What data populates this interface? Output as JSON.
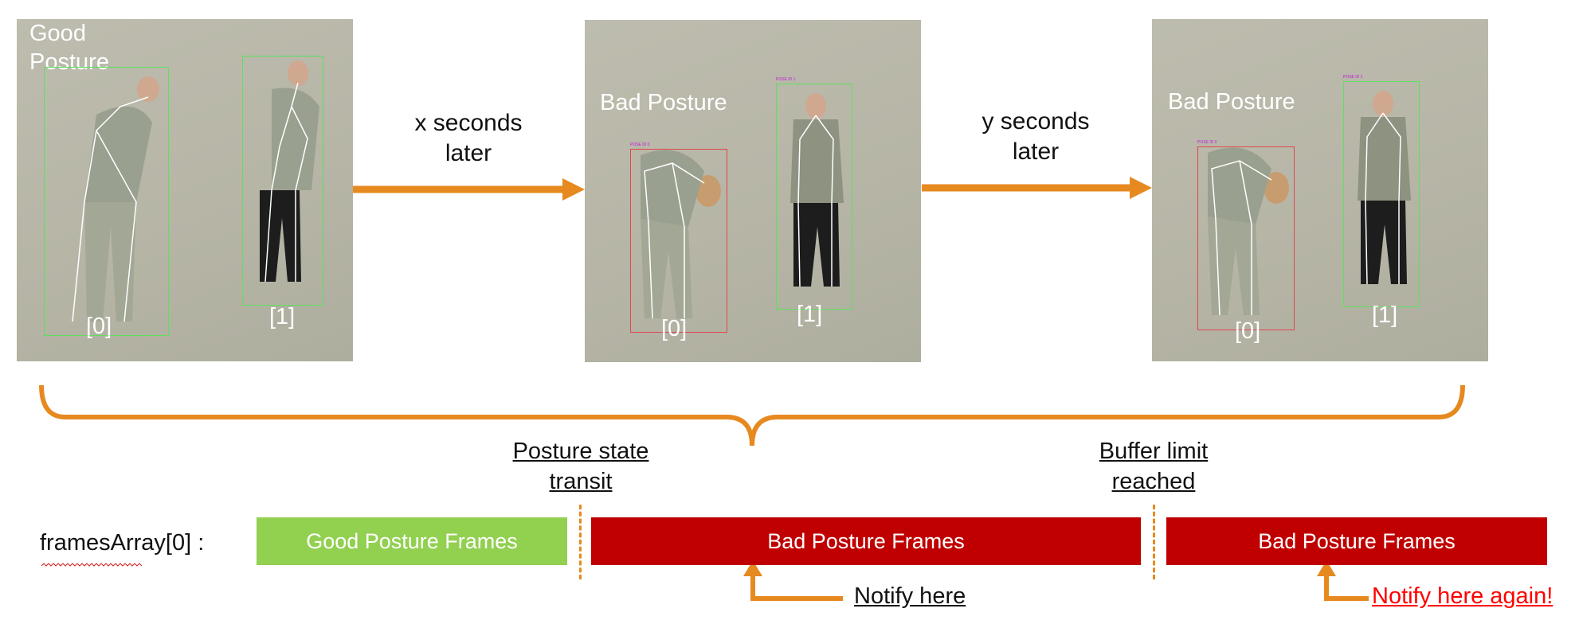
{
  "panels": [
    {
      "label_lines": [
        "Good",
        "Posture"
      ],
      "person0_index": "[0]",
      "person1_index": "[1]",
      "state": "good"
    },
    {
      "label_lines": [
        "Bad Posture"
      ],
      "person0_index": "[0]",
      "person1_index": "[1]",
      "state": "bad"
    },
    {
      "label_lines": [
        "Bad Posture"
      ],
      "person0_index": "[0]",
      "person1_index": "[1]",
      "state": "bad"
    }
  ],
  "transitions": [
    {
      "line1": "x seconds",
      "line2": "later"
    },
    {
      "line1": "y seconds",
      "line2": "later"
    }
  ],
  "markers": {
    "transit": {
      "line1": "Posture state",
      "line2": "transit"
    },
    "buffer": {
      "line1": "Buffer limit",
      "line2": "reached"
    }
  },
  "array_label": "framesArray[0] :",
  "bars": [
    {
      "label": "Good Posture Frames",
      "state": "good"
    },
    {
      "label": "Bad Posture Frames",
      "state": "bad"
    },
    {
      "label": "Bad Posture Frames",
      "state": "bad"
    }
  ],
  "notifications": {
    "first": "Notify here",
    "second": "Notify here again!"
  },
  "colors": {
    "arrow": "#e6891f",
    "good_bar": "#92d050",
    "bad_bar": "#c00000",
    "alert_text": "#ff0000"
  }
}
